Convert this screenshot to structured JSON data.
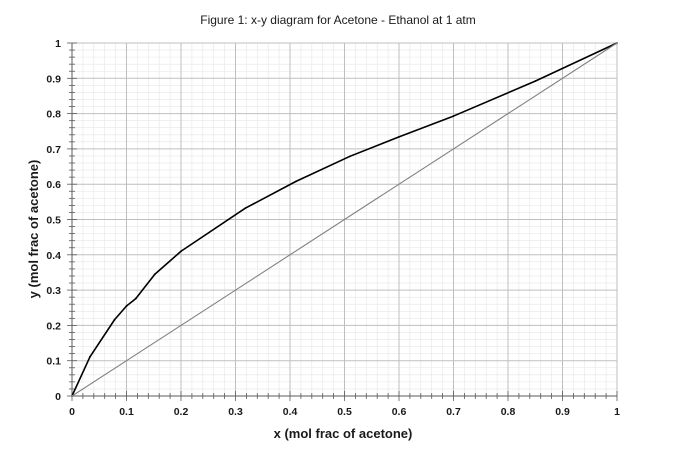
{
  "chart_data": {
    "type": "line",
    "title": "Figure 1: x-y diagram for Acetone - Ethanol at 1 atm",
    "xlabel": "x (mol frac of acetone)",
    "ylabel": "y (mol frac of acetone)",
    "xlim": [
      0,
      1
    ],
    "ylim": [
      0,
      1
    ],
    "x_ticks": [
      "0",
      "0.1",
      "0.2",
      "0.3",
      "0.4",
      "0.5",
      "0.6",
      "0.7",
      "0.8",
      "0.9",
      "1"
    ],
    "y_ticks": [
      "0",
      "0.1",
      "0.2",
      "0.3",
      "0.4",
      "0.5",
      "0.6",
      "0.7",
      "0.8",
      "0.9",
      "1"
    ],
    "grid": true,
    "minor_grid": true,
    "legend": "none",
    "series": [
      {
        "color": "#000000",
        "points": [
          {
            "x": 0.0,
            "y": 0.0
          },
          {
            "x": 0.033,
            "y": 0.111
          },
          {
            "x": 0.078,
            "y": 0.216
          },
          {
            "x": 0.1,
            "y": 0.255
          },
          {
            "x": 0.117,
            "y": 0.276
          },
          {
            "x": 0.152,
            "y": 0.345
          },
          {
            "x": 0.2,
            "y": 0.41
          },
          {
            "x": 0.318,
            "y": 0.532
          },
          {
            "x": 0.411,
            "y": 0.608
          },
          {
            "x": 0.51,
            "y": 0.679
          },
          {
            "x": 0.6,
            "y": 0.734
          },
          {
            "x": 0.7,
            "y": 0.793
          },
          {
            "x": 0.85,
            "y": 0.892
          },
          {
            "x": 1.0,
            "y": 1.0
          }
        ]
      },
      {
        "color": "#808080",
        "points": [
          {
            "x": 0.0,
            "y": 0.0
          },
          {
            "x": 1.0,
            "y": 1.0
          }
        ]
      }
    ]
  }
}
